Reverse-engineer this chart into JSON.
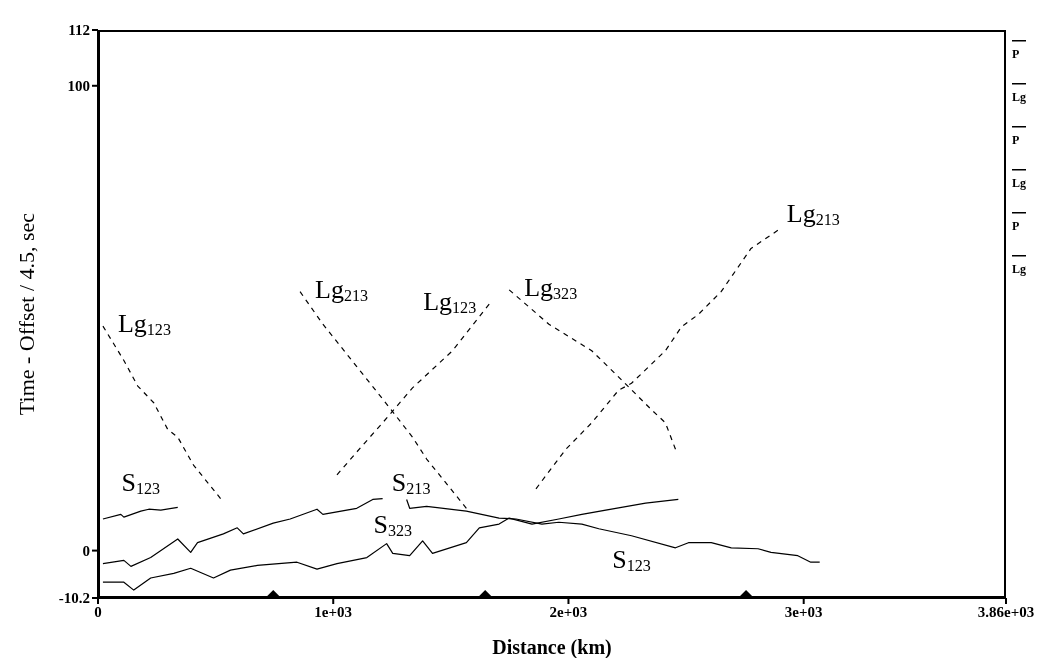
{
  "chart_data": {
    "type": "line",
    "xlabel": "Distance (km)",
    "ylabel": "Time - Offset / 4.5, sec",
    "xlim": [
      0,
      3860
    ],
    "xticks": [
      0,
      {
        "value": 1000,
        "label": "1e+03"
      },
      {
        "value": 2000,
        "label": "2e+03"
      },
      {
        "value": 3000,
        "label": "3e+03"
      },
      {
        "value": 3860,
        "label": "3.86e+03"
      }
    ],
    "ylim": [
      -10.2,
      112
    ],
    "yticks": [
      -10.2,
      0,
      100,
      112
    ],
    "grid": false,
    "legend": false,
    "marker": "none",
    "series": [
      {
        "name": "S$_{123}$",
        "color": "#000000",
        "line_style": "solid",
        "x": [
          21,
          97,
          110,
          182,
          216,
          267,
          339
        ],
        "values": [
          6.8,
          7.8,
          7.2,
          8.5,
          8.9,
          8.7,
          9.3
        ]
      },
      {
        "name": "S$_{123}$",
        "color": "#000000",
        "line_style": "solid",
        "x": [
          1312,
          1325,
          1397,
          1566,
          1705,
          1777,
          1887,
          1959,
          2057,
          2129,
          2268,
          2455,
          2510,
          2607,
          2692,
          2806,
          2861,
          2975,
          3030,
          3068
        ],
        "values": [
          11.0,
          9.1,
          9.5,
          8.5,
          7.0,
          6.8,
          5.7,
          6.1,
          5.7,
          4.7,
          3.2,
          0.6,
          1.7,
          1.7,
          0.6,
          0.4,
          -0.4,
          -1.1,
          -2.5,
          -2.5
        ]
      },
      {
        "name": "S$_{213}$",
        "color": "#000000",
        "line_style": "solid",
        "x": [
          21,
          110,
          140,
          224,
          339,
          394,
          423,
          533,
          592,
          618,
          745,
          817,
          931,
          956,
          1100,
          1168,
          1210
        ],
        "values": [
          -2.8,
          -2.1,
          -3.4,
          -1.5,
          2.5,
          -0.4,
          1.7,
          3.6,
          4.9,
          3.6,
          5.9,
          6.8,
          8.9,
          7.8,
          9.1,
          11.0,
          11.2
        ]
      },
      {
        "name": "S$_{323}$",
        "color": "#000000",
        "line_style": "solid",
        "x": [
          21,
          110,
          152,
          224,
          322,
          394,
          491,
          563,
          677,
          846,
          931,
          1016,
          1143,
          1227,
          1253,
          1325,
          1380,
          1422,
          1566,
          1621,
          1705,
          1748,
          1845,
          1959,
          2057,
          2201,
          2328,
          2467
        ],
        "values": [
          -6.8,
          -6.8,
          -8.5,
          -5.9,
          -4.9,
          -3.8,
          -5.9,
          -4.2,
          -3.2,
          -2.5,
          -4.0,
          -2.8,
          -1.5,
          1.5,
          -0.6,
          -1.1,
          2.1,
          -0.6,
          1.7,
          4.9,
          5.7,
          7.0,
          5.7,
          6.8,
          7.8,
          9.1,
          10.2,
          11.0
        ]
      },
      {
        "name": "Lg$_{123}$",
        "color": "#000000",
        "line_style": "dashed",
        "x": [
          21,
          110,
          169,
          237,
          296,
          339,
          406,
          521
        ],
        "values": [
          48.3,
          40.9,
          35.4,
          31.8,
          26.1,
          24.4,
          18.4,
          11.2
        ]
      },
      {
        "name": "Lg$_{213}$",
        "color": "#000000",
        "line_style": "dashed",
        "x": [
          859,
          956,
          1100,
          1240,
          1337,
          1397,
          1566
        ],
        "values": [
          55.7,
          48.7,
          39.6,
          30.7,
          24.4,
          19.7,
          9.1
        ]
      },
      {
        "name": "Lg$_{123}$",
        "color": "#000000",
        "line_style": "dashed",
        "x": [
          1016,
          1100,
          1210,
          1337,
          1507,
          1663
        ],
        "values": [
          16.3,
          21.2,
          27.5,
          35.0,
          43.0,
          53.0
        ]
      },
      {
        "name": "Lg$_{323}$",
        "color": "#000000",
        "line_style": "dashed",
        "x": [
          1748,
          1917,
          2099,
          2226,
          2353,
          2412,
          2455
        ],
        "values": [
          56.1,
          48.7,
          43.0,
          36.7,
          30.3,
          27.5,
          21.8
        ]
      },
      {
        "name": "Lg$_{213}$",
        "color": "#000000",
        "line_style": "dashed",
        "x": [
          1862,
          1989,
          2099,
          2213,
          2268,
          2412,
          2480,
          2552,
          2649,
          2776,
          2890
        ],
        "values": [
          13.3,
          21.8,
          27.5,
          34.5,
          36.0,
          43.0,
          48.1,
          50.8,
          55.7,
          65.0,
          68.9
        ]
      },
      {
        "type": "scatter",
        "marker": "diamond",
        "color": "#000000",
        "x": [
          745,
          1646,
          2755
        ],
        "values": [
          -10.2,
          -10.2,
          -10.2
        ]
      }
    ],
    "annotations": [
      "P",
      "Lg",
      "P",
      "Lg",
      "P",
      "Lg"
    ]
  }
}
